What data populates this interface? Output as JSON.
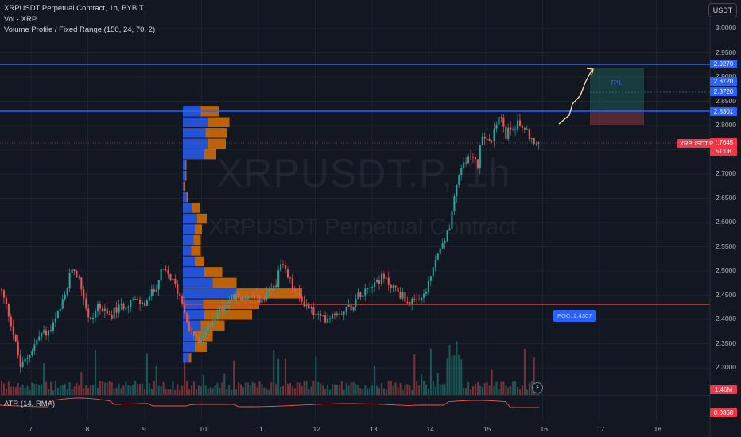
{
  "legend": {
    "symbol_line": "XRPUSDT Perpetual Contract, 1h, BYBIT",
    "volume_line": "Vol · XRP",
    "profile_line": "Volume Profile / Fixed Range (150, 24, 70, 2)"
  },
  "currency": "USDT",
  "watermark": {
    "symbol": "XRPUSDT.P, 1h",
    "name": "XRPUSDT Perpetual Contract"
  },
  "y_axis_ticks": [
    "3.0000",
    "2.9500",
    "2.9000",
    "2.8500",
    "2.8000",
    "2.7500",
    "2.7000",
    "2.6500",
    "2.6000",
    "2.5500",
    "2.5000",
    "2.4500",
    "2.4000",
    "2.3500",
    "2.3000"
  ],
  "x_axis_ticks": [
    "7",
    "8",
    "9",
    "10",
    "11",
    "12",
    "13",
    "14",
    "15",
    "16",
    "17",
    "18"
  ],
  "price_tags": {
    "upper_line": "2.9270",
    "tp_top": "2.8720",
    "tp_bottom": "2.8720",
    "entry_line": "2.8301",
    "current": "2.7645",
    "countdown": "51:08",
    "volume": "1.46M",
    "atr": "0.0368"
  },
  "symbol_badge": "XRPUSDT.P",
  "tp_label": "TP1",
  "poc_label": "POC: 2.4307",
  "atr_legend": "ATR (14, RMA)",
  "colors": {
    "background": "#131722",
    "up": "#26a69a",
    "down": "#ef5350",
    "line_blue": "#2962ff",
    "poc_red": "#e53935",
    "profile_blue": "#2962ff",
    "profile_orange": "#f57c00"
  },
  "chart_data": {
    "type": "candlestick",
    "price_range": [
      2.27,
      3.03
    ],
    "x_range_days": [
      6.6,
      18.7
    ],
    "horizontal_lines": [
      2.927,
      2.8301
    ],
    "poc": 2.4307,
    "current_price": 2.7645,
    "tp_zone": [
      2.83,
      2.927
    ],
    "sl_zone": [
      2.805,
      2.83
    ],
    "profile_range": [
      2.31,
      2.84
    ],
    "profile_rows": 24
  }
}
